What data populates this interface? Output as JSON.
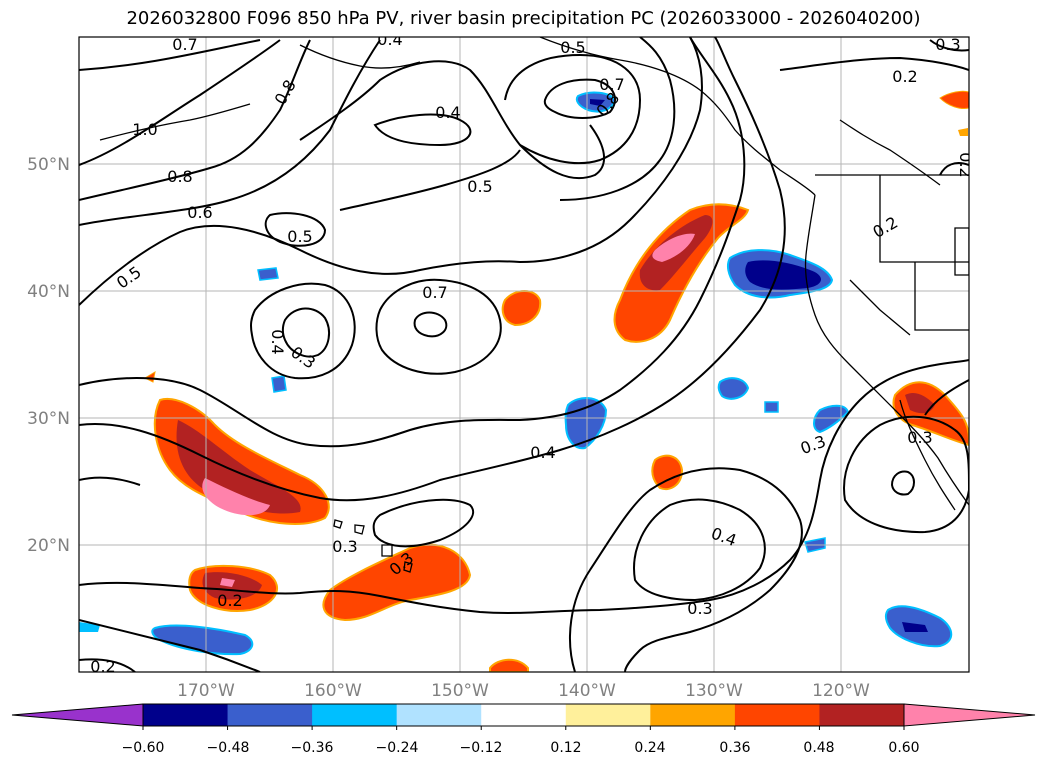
{
  "title": "2026032800 F096 850 hPa PV, river basin precipitation PC (2026033000 - 2026040200)",
  "map": {
    "lat_labels": [
      "50°N",
      "40°N",
      "30°N",
      "20°N"
    ],
    "lon_labels": [
      "170°W",
      "160°W",
      "150°W",
      "140°W",
      "130°W",
      "120°W"
    ],
    "gridlines": true
  },
  "colorbar": {
    "ticks": [
      "−0.60",
      "−0.48",
      "−0.36",
      "−0.24",
      "−0.12",
      "0.12",
      "0.24",
      "0.36",
      "0.48",
      "0.60"
    ],
    "colors": [
      "#9932cc",
      "#00008b",
      "#3a5fcd",
      "#00bfff",
      "#b0e2ff",
      "#ffffff",
      "#fff09b",
      "#ffa500",
      "#ff4500",
      "#b22222",
      "#ff82ab"
    ]
  },
  "contour_labels": [
    "0.7",
    "0.8",
    "1.0",
    "0.8",
    "0.6",
    "0.5",
    "0.5",
    "0.4",
    "0.5",
    "0.5",
    "0.7",
    "0.8",
    "0.2",
    "0.2",
    "0.2",
    "0.7",
    "0.4",
    "0.3",
    "0.4",
    "0.3",
    "0.3",
    "0.4",
    "0.3",
    "0.2",
    "0.3",
    "0.3",
    "0.2",
    "0.4",
    "0.3"
  ]
}
